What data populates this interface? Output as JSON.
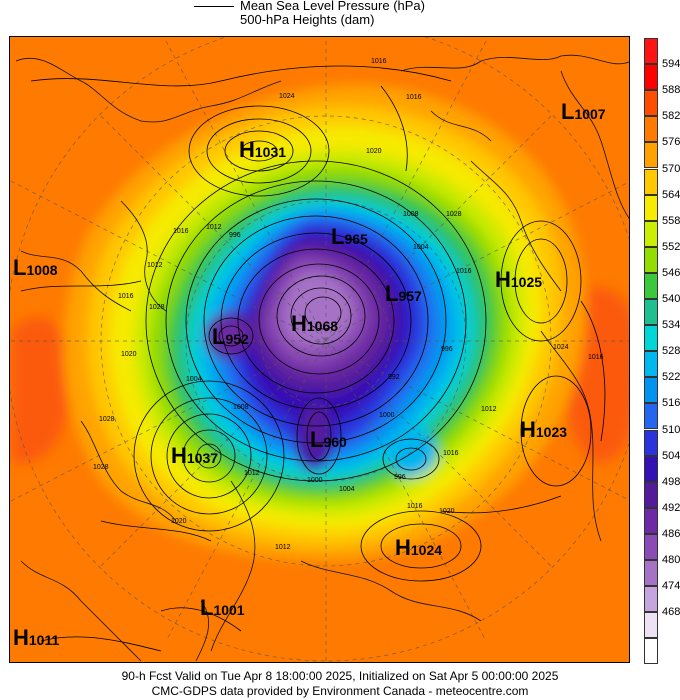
{
  "header": {
    "line1": "Mean Sea Level Pressure (hPa)",
    "line2": "500-hPa Heights (dam)"
  },
  "colorbar": {
    "labels": [
      "594",
      "588",
      "582",
      "576",
      "570",
      "564",
      "558",
      "552",
      "546",
      "540",
      "534",
      "528",
      "522",
      "516",
      "510",
      "504",
      "498",
      "492",
      "486",
      "480",
      "474",
      "468"
    ],
    "colors": [
      "#ff0000",
      "#fe4d00",
      "#ff7a00",
      "#ffa200",
      "#ffc800",
      "#f6ec00",
      "#ccee00",
      "#94dd00",
      "#3cc83c",
      "#1fbf90",
      "#00d6d6",
      "#00b7ee",
      "#0093f0",
      "#2467ee",
      "#2b33dd",
      "#3311b5",
      "#541a9c",
      "#6e2aa6",
      "#8b4bb6",
      "#a572c6",
      "#c6a4de",
      "#ece2f4"
    ],
    "extra_top_color": "#ff1414",
    "extra_bottom_color": "#ffffff"
  },
  "pressure_systems": [
    {
      "type": "H",
      "value": "1031"
    },
    {
      "type": "L",
      "value": "1007"
    },
    {
      "type": "L",
      "value": "1008"
    },
    {
      "type": "L",
      "value": "965"
    },
    {
      "type": "L",
      "value": "957"
    },
    {
      "type": "H",
      "value": "1068"
    },
    {
      "type": "L",
      "value": "952"
    },
    {
      "type": "H",
      "value": "1025"
    },
    {
      "type": "H",
      "value": "1023"
    },
    {
      "type": "L",
      "value": "960"
    },
    {
      "type": "H",
      "value": "1037"
    },
    {
      "type": "H",
      "value": "1024"
    },
    {
      "type": "L",
      "value": "1001"
    },
    {
      "type": "H",
      "value": "1011"
    }
  ],
  "contour_labels": [
    "1016",
    "1024",
    "1016",
    "1020",
    "1008",
    "1028",
    "1016",
    "1012",
    "996",
    "1016",
    "1012",
    "1004",
    "1016",
    "1028",
    "1020",
    "1024",
    "1004",
    "1008",
    "1016",
    "992",
    "996",
    "1012",
    "1000",
    "1012",
    "1016",
    "1028",
    "1000",
    "1004",
    "996",
    "1016",
    "1020",
    "1012",
    "1028",
    "1020"
  ],
  "footer": {
    "line1": "90-h Fcst Valid on Tue Apr  8 18:00:00 2025, Initialized on Sat Apr  5 00:00:00 2025",
    "line2": "CMC-GDPS data provided by Environment Canada - meteocentre.com"
  }
}
